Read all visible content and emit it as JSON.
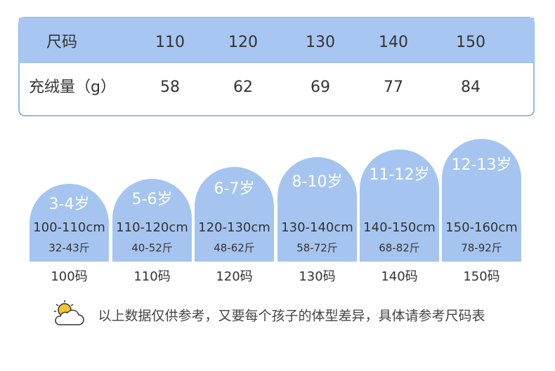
{
  "table": {
    "header": [
      "尺码",
      "110",
      "120",
      "130",
      "140",
      "150"
    ],
    "rows": [
      [
        "充绒量（g）",
        "58",
        "62",
        "69",
        "77",
        "84"
      ]
    ]
  },
  "sizes": [
    {
      "age": "3-4岁",
      "height": "100-110cm",
      "weight": "32-43斤",
      "size": "100码"
    },
    {
      "age": "5-6岁",
      "height": "110-120cm",
      "weight": "40-52斤",
      "size": "110码"
    },
    {
      "age": "6-7岁",
      "height": "120-130cm",
      "weight": "48-62斤",
      "size": "120码"
    },
    {
      "age": "8-10岁",
      "height": "130-140cm",
      "weight": "58-72斤",
      "size": "130码"
    },
    {
      "age": "11-12岁",
      "height": "140-150cm",
      "weight": "68-82斤",
      "size": "140码"
    },
    {
      "age": "12-13岁",
      "height": "150-160cm",
      "weight": "78-92斤",
      "size": "150码"
    }
  ],
  "note": "以上数据仅供参考，又要每个孩子的体型差异，具体请参考尺码表"
}
